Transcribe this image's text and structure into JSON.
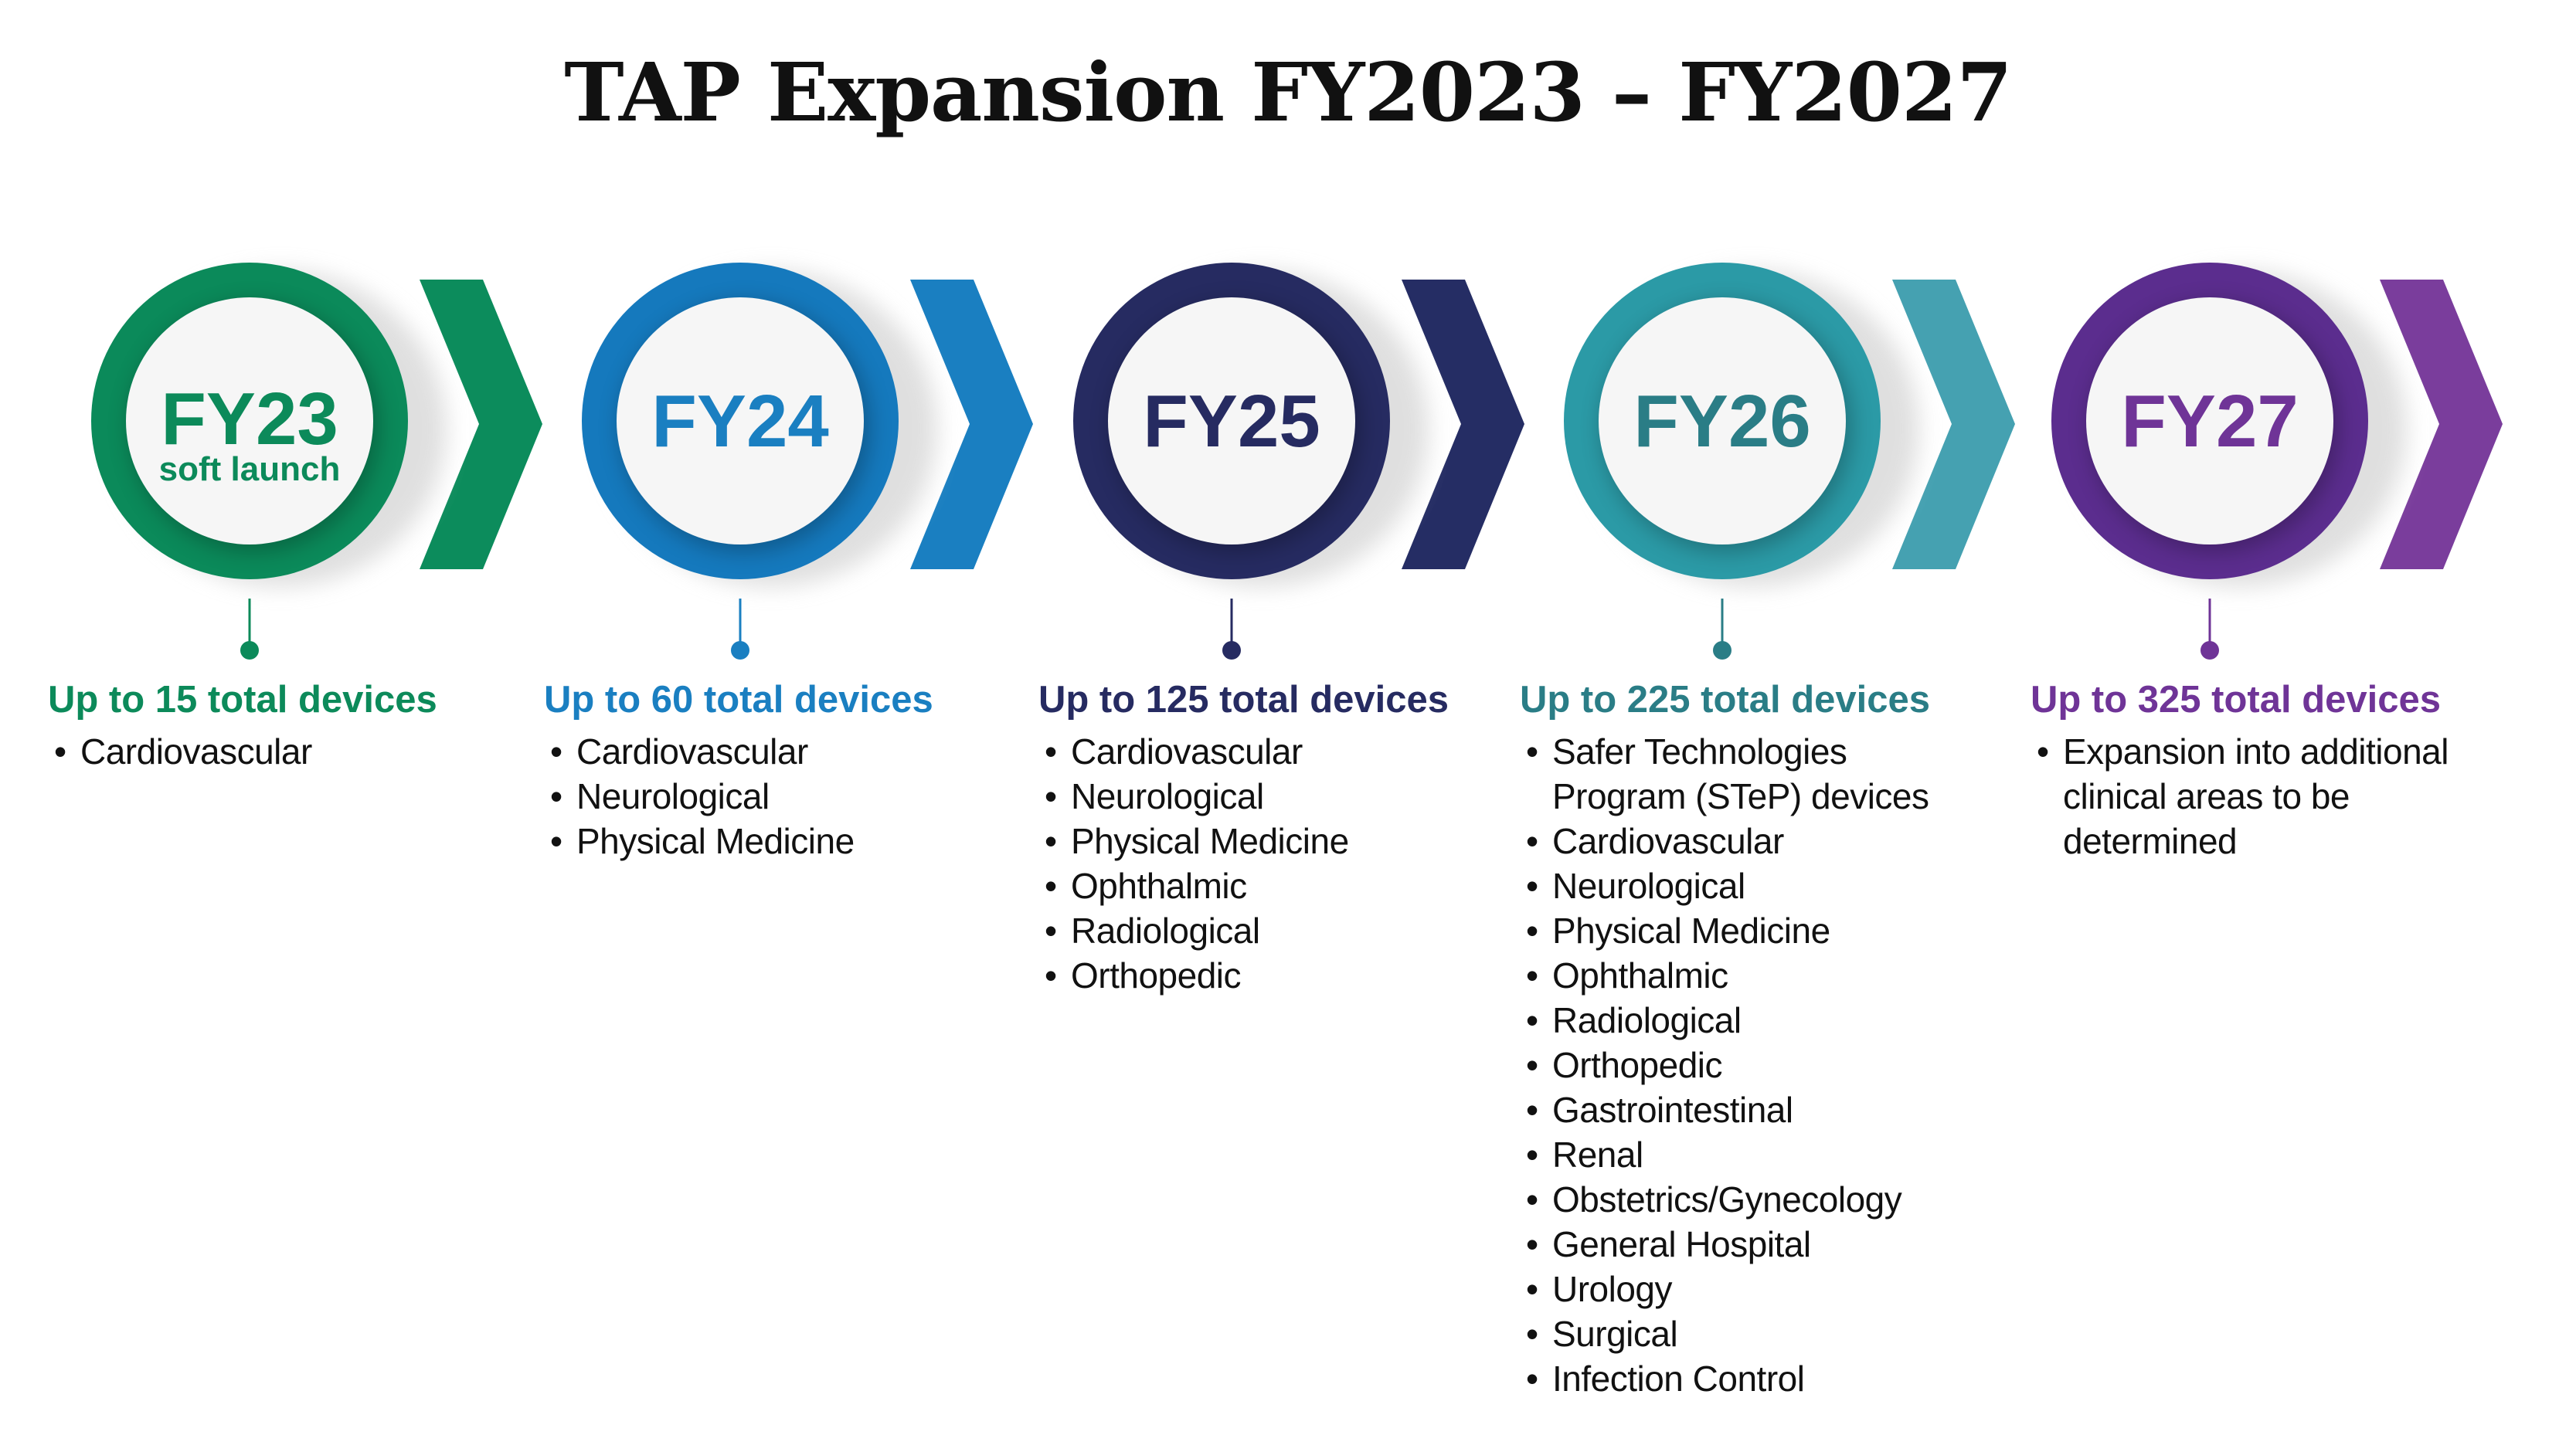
{
  "title": "TAP Expansion FY2023 – FY2027",
  "stages": [
    {
      "label": "FY23",
      "sublabel": "soft launch",
      "heading": "Up to 15 total devices",
      "items": [
        "Cardiovascular"
      ]
    },
    {
      "label": "FY24",
      "heading": "Up to 60 total devices",
      "items": [
        "Cardiovascular",
        "Neurological",
        "Physical Medicine"
      ]
    },
    {
      "label": "FY25",
      "heading": "Up to 125 total devices",
      "items": [
        "Cardiovascular",
        "Neurological",
        "Physical Medicine",
        "Ophthalmic",
        "Radiological",
        "Orthopedic"
      ]
    },
    {
      "label": "FY26",
      "heading": "Up to 225 total devices",
      "items": [
        "Safer Technologies Program (STeP) devices",
        "Cardiovascular",
        "Neurological",
        "Physical Medicine",
        "Ophthalmic",
        "Radiological",
        "Orthopedic",
        "Gastrointestinal",
        "Renal",
        "Obstetrics/Gynecology",
        "General Hospital",
        "Urology",
        "Surgical",
        "Infection Control"
      ]
    },
    {
      "label": "FY27",
      "heading": "Up to 325 total devices",
      "items": [
        "Expansion into additional clinical areas to be determined"
      ]
    }
  ]
}
